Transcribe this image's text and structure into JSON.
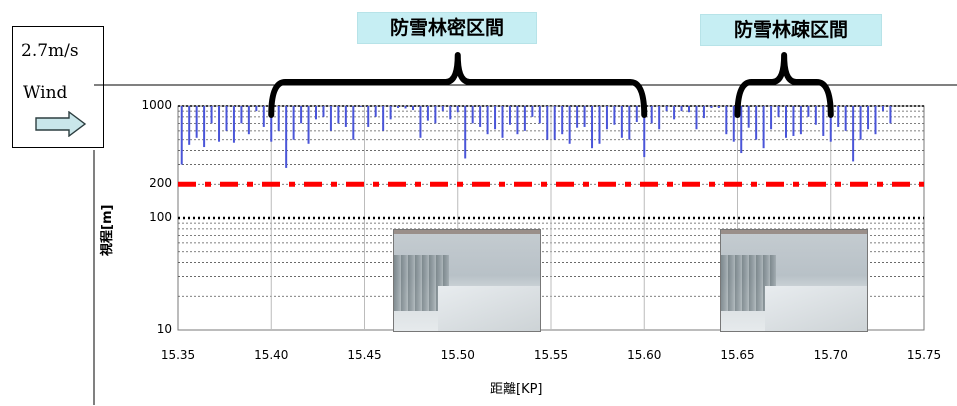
{
  "wind": {
    "speed": "2.7m/s",
    "label": "Wind"
  },
  "section_labels": {
    "dense": "防雪林密区間",
    "sparse": "防雪林疎区間"
  },
  "chart_data": {
    "type": "bar",
    "title": "",
    "xlabel": "距離[KP]",
    "ylabel": "視程[m]",
    "yscale": "log",
    "xlim": [
      15.35,
      15.75
    ],
    "ylim": [
      10,
      1000
    ],
    "x_ticks": [
      "15.35",
      "15.40",
      "15.45",
      "15.50",
      "15.55",
      "15.60",
      "15.65",
      "15.70",
      "15.75"
    ],
    "y_ticks": [
      "10",
      "100",
      "200",
      "1000"
    ],
    "x_tick_values": [
      15.35,
      15.4,
      15.45,
      15.5,
      15.55,
      15.6,
      15.65,
      15.7,
      15.75
    ],
    "y_tick_values": [
      10,
      100,
      200,
      1000
    ],
    "series_color": "#4a55d8",
    "reference_lines": [
      {
        "value": 200,
        "style": "dash-dot",
        "color": "#ff0000"
      },
      {
        "value": 100,
        "style": "dotted",
        "color": "#000000"
      }
    ],
    "x": [
      15.352,
      15.356,
      15.36,
      15.364,
      15.368,
      15.372,
      15.376,
      15.38,
      15.384,
      15.388,
      15.392,
      15.396,
      15.4,
      15.404,
      15.408,
      15.412,
      15.416,
      15.42,
      15.424,
      15.428,
      15.432,
      15.436,
      15.44,
      15.444,
      15.448,
      15.452,
      15.456,
      15.46,
      15.464,
      15.468,
      15.472,
      15.476,
      15.48,
      15.484,
      15.488,
      15.492,
      15.496,
      15.5,
      15.504,
      15.508,
      15.512,
      15.516,
      15.52,
      15.524,
      15.528,
      15.532,
      15.536,
      15.54,
      15.544,
      15.548,
      15.552,
      15.556,
      15.56,
      15.564,
      15.568,
      15.572,
      15.576,
      15.58,
      15.584,
      15.588,
      15.592,
      15.596,
      15.6,
      15.604,
      15.608,
      15.612,
      15.616,
      15.62,
      15.624,
      15.628,
      15.632,
      15.636,
      15.64,
      15.644,
      15.648,
      15.652,
      15.656,
      15.66,
      15.664,
      15.668,
      15.672,
      15.676,
      15.68,
      15.684,
      15.688,
      15.692,
      15.696,
      15.7,
      15.704,
      15.708,
      15.712,
      15.716,
      15.72,
      15.724,
      15.728,
      15.732
    ],
    "values": [
      300,
      450,
      520,
      430,
      700,
      480,
      600,
      470,
      700,
      560,
      900,
      650,
      480,
      600,
      280,
      500,
      700,
      460,
      760,
      800,
      600,
      700,
      650,
      500,
      980,
      650,
      800,
      600,
      760,
      960,
      950,
      920,
      520,
      740,
      700,
      900,
      760,
      880,
      340,
      700,
      650,
      560,
      620,
      520,
      680,
      560,
      600,
      800,
      700,
      500,
      500,
      560,
      460,
      640,
      650,
      420,
      460,
      620,
      680,
      520,
      500,
      720,
      350,
      700,
      620,
      900,
      760,
      900,
      880,
      620,
      780,
      960,
      960,
      560,
      480,
      380,
      640,
      500,
      420,
      620,
      800,
      520,
      540,
      560,
      800,
      680,
      540,
      480,
      650,
      600,
      320,
      500,
      620,
      560,
      900,
      700
    ]
  }
}
